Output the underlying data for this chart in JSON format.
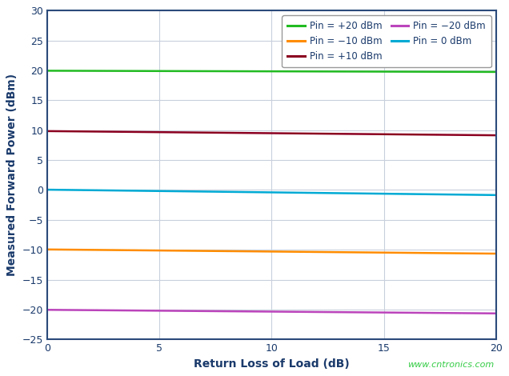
{
  "title": "",
  "xlabel": "Return Loss of Load (dB)",
  "ylabel": "Measured Forward Power (dBm)",
  "xlim": [
    0,
    20
  ],
  "ylim": [
    -25,
    30
  ],
  "xticks": [
    0,
    5,
    10,
    15,
    20
  ],
  "yticks": [
    -25,
    -20,
    -15,
    -10,
    -5,
    0,
    5,
    10,
    15,
    20,
    25,
    30
  ],
  "plot_bg_color": "#ffffff",
  "fig_bg_color": "#ffffff",
  "grid_color": "#c8d0dc",
  "spine_color": "#2b4a7a",
  "series": [
    {
      "label": "Pin = +20 dBm",
      "color": "#22bb22",
      "x": [
        0,
        20
      ],
      "y": [
        19.95,
        19.75
      ]
    },
    {
      "label": "Pin = +10 dBm",
      "color": "#8b0020",
      "x": [
        0,
        20
      ],
      "y": [
        9.85,
        9.15
      ]
    },
    {
      "label": "Pin = 0 dBm",
      "color": "#00aad4",
      "x": [
        0,
        20
      ],
      "y": [
        0.05,
        -0.85
      ]
    },
    {
      "label": "Pin = -10 dBm",
      "color": "#ff8c00",
      "x": [
        0,
        20
      ],
      "y": [
        -9.95,
        -10.65
      ]
    },
    {
      "label": "Pin = -20 dBm",
      "color": "#bb44bb",
      "x": [
        0,
        20
      ],
      "y": [
        -20.05,
        -20.65
      ]
    }
  ],
  "legend_entries": [
    {
      "label": "Pin = +20 dBm",
      "color": "#22bb22"
    },
    {
      "label": "Pin = −10 dBm",
      "color": "#ff8c00"
    },
    {
      "label": "Pin = +10 dBm",
      "color": "#8b0020"
    },
    {
      "label": "Pin = −20 dBm",
      "color": "#bb44bb"
    },
    {
      "label": "Pin = 0 dBm",
      "color": "#00aad4"
    }
  ],
  "axis_label_color": "#1a3a6b",
  "tick_label_color": "#1a3a6b",
  "line_width": 1.8,
  "watermark": "www.cntronics.com",
  "watermark_color": "#33cc44"
}
